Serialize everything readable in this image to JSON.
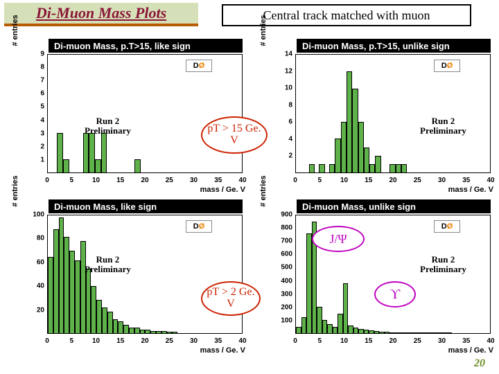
{
  "title": "Di-Muon Mass Plots",
  "subtitle": "Central track matched with muon",
  "page_number": "20",
  "colors": {
    "bar_fill": "#5fb24a",
    "title_bg": "#d6e0b8",
    "title_fg": "#8a1538",
    "title_underline": "#b85c00",
    "oval_red": "#cc2200",
    "oval_purple": "#c000c0"
  },
  "ovals": {
    "pt15": "pT > 15 Ge. V",
    "pt2": "pT > 2 Ge. V",
    "jpsi": "J/Ψ",
    "upsilon": "ϒ"
  },
  "logo_text": "D",
  "logo_o": "Ø",
  "run_label": "Run 2",
  "prelim_label": "Preliminary",
  "panels": {
    "tl": {
      "title": "Di-muon Mass, p.T>15, like sign",
      "ylabel": "# entries",
      "xlabel": "mass / Ge. V",
      "ymax": 9,
      "yticks": [
        1,
        2,
        3,
        4,
        5,
        6,
        7,
        8,
        9
      ],
      "xmax": 40,
      "xticks": [
        0,
        5,
        10,
        15,
        20,
        25,
        30,
        35,
        40
      ],
      "bars": [
        0,
        0,
        3,
        1,
        0,
        0,
        0,
        3,
        3,
        1,
        3,
        0,
        0,
        0,
        0,
        0,
        0,
        1,
        0,
        0,
        0,
        0,
        0,
        0,
        0,
        0,
        0,
        0,
        0,
        0,
        0,
        0,
        0,
        0,
        0,
        0,
        0,
        0,
        0,
        0
      ]
    },
    "tr": {
      "title": "Di-muon Mass, p.T>15, unlike sign",
      "ylabel": "# entries",
      "xlabel": "mass / Ge. V",
      "ymax": 14,
      "yticks": [
        2,
        4,
        6,
        8,
        10,
        12,
        14
      ],
      "xmax": 40,
      "xticks": [
        0,
        5,
        10,
        15,
        20,
        25,
        30,
        35,
        40
      ],
      "bars": [
        0,
        0,
        0,
        1,
        0,
        1,
        0,
        1,
        4,
        6,
        12,
        10,
        6,
        3,
        1,
        2,
        0,
        0,
        1,
        1,
        1,
        0,
        0,
        0,
        0,
        0,
        0,
        0,
        0,
        0,
        0,
        0,
        0,
        0,
        0,
        0,
        0,
        0,
        0,
        0
      ]
    },
    "bl": {
      "title": "Di-muon Mass, like sign",
      "ylabel": "# entries",
      "xlabel": "mass / Ge. V",
      "ymax": 100,
      "yticks": [
        20,
        40,
        60,
        80,
        100
      ],
      "xmax": 40,
      "xticks": [
        0,
        5,
        10,
        15,
        20,
        25,
        30,
        35,
        40
      ],
      "bars": [
        65,
        88,
        98,
        82,
        70,
        62,
        78,
        55,
        40,
        28,
        22,
        18,
        12,
        10,
        7,
        5,
        5,
        3,
        3,
        2,
        2,
        2,
        1,
        1,
        0,
        0,
        0,
        0,
        0,
        0,
        0,
        0,
        0,
        0,
        0,
        0,
        0,
        0,
        0,
        0
      ]
    },
    "br": {
      "title": "Di-muon Mass, unlike sign",
      "ylabel": "# entries",
      "xlabel": "mass / Ge. V",
      "ymax": 900,
      "yticks": [
        100,
        200,
        300,
        400,
        500,
        600,
        700,
        800,
        900
      ],
      "xmax": 40,
      "xticks": [
        0,
        5,
        10,
        15,
        20,
        25,
        30,
        35,
        40
      ],
      "bars": [
        50,
        120,
        760,
        850,
        200,
        100,
        70,
        50,
        150,
        380,
        60,
        40,
        30,
        25,
        20,
        15,
        12,
        10,
        8,
        6,
        5,
        4,
        3,
        3,
        2,
        2,
        1,
        1,
        1,
        1,
        0,
        0,
        0,
        0,
        0,
        0,
        0,
        0,
        0,
        0
      ]
    }
  }
}
